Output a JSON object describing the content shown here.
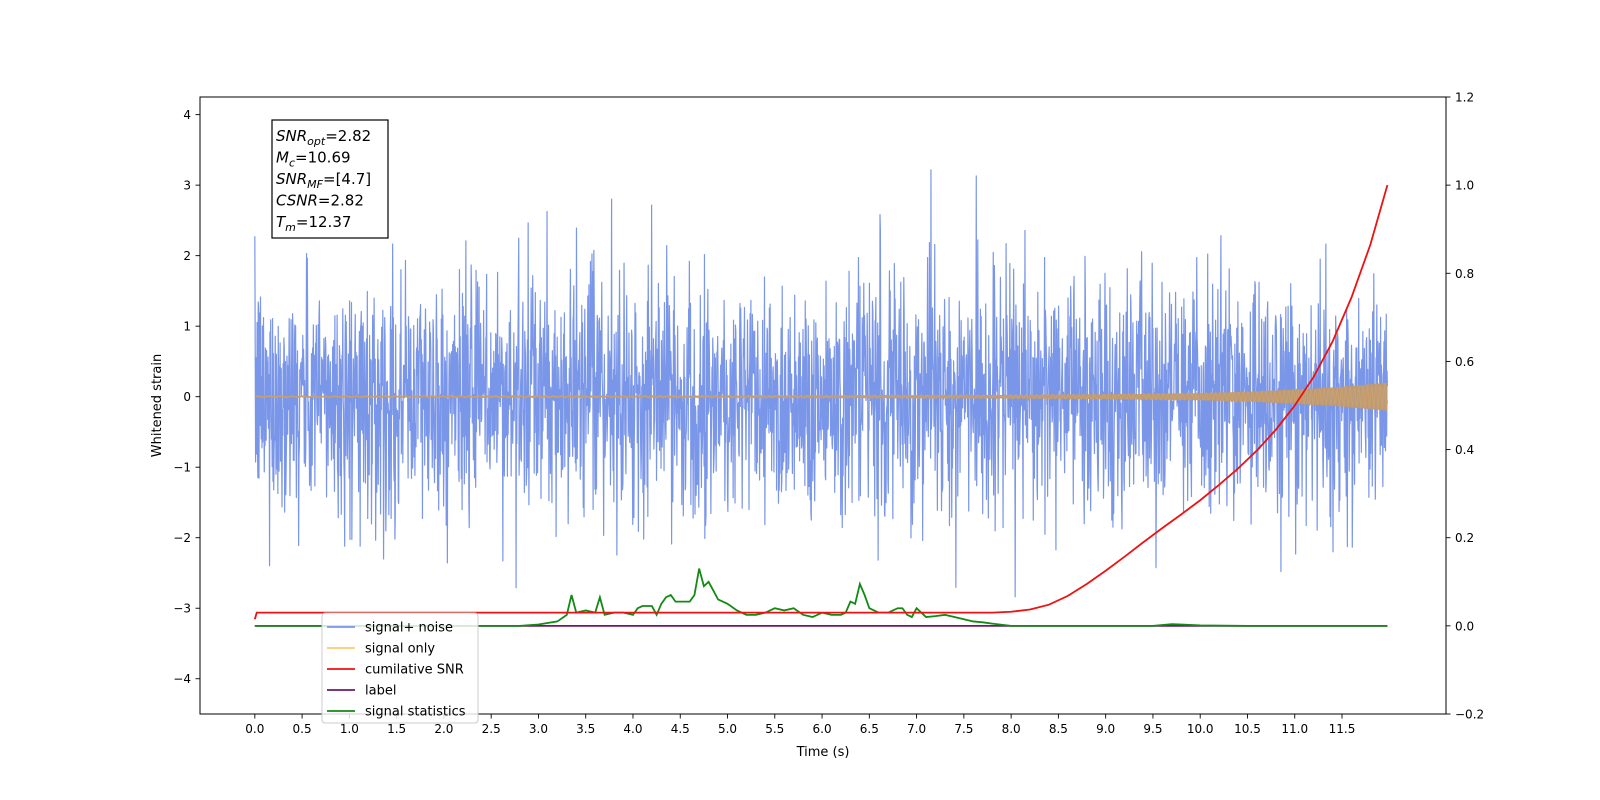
{
  "chart_data": {
    "type": "line",
    "title": "",
    "xlabel": "Time (s)",
    "ylabel_left": "Whitened strain",
    "ylabel_right": "",
    "xlim": [
      -0.58,
      12.6
    ],
    "ylim_left": [
      -4.5,
      4.25
    ],
    "ylim_right": [
      -0.2,
      1.2
    ],
    "x_ticks": [
      0.0,
      0.5,
      1.0,
      1.5,
      2.0,
      2.5,
      3.0,
      3.5,
      4.0,
      4.5,
      5.0,
      5.5,
      6.0,
      6.5,
      7.0,
      7.5,
      8.0,
      8.5,
      9.0,
      9.5,
      10.0,
      10.5,
      11.0,
      11.5
    ],
    "x_tick_labels": [
      "0.0",
      "0.5",
      "1.0",
      "1.5",
      "2.0",
      "2.5",
      "3.0",
      "3.5",
      "4.0",
      "4.5",
      "5.0",
      "5.5",
      "6.0",
      "6.5",
      "7.0",
      "7.5",
      "8.0",
      "8.5",
      "9.0",
      "9.5",
      "10.0",
      "10.5",
      "11.0",
      "11.5"
    ],
    "y_left_ticks": [
      4,
      3,
      2,
      1,
      0,
      -1,
      -2,
      -3,
      -4
    ],
    "y_left_tick_labels": [
      "4",
      "3",
      "2",
      "1",
      "0",
      "−1",
      "−2",
      "−3",
      "−4"
    ],
    "y_right_ticks": [
      1.2,
      1.0,
      0.8,
      0.6,
      0.4,
      0.2,
      0.0,
      -0.2
    ],
    "y_right_tick_labels": [
      "1.2",
      "1.0",
      "0.8",
      "0.6",
      "0.4",
      "0.2",
      "0.0",
      "−0.2"
    ],
    "grid": false,
    "legend_placement": "lower-left",
    "annotation": {
      "lines": [
        {
          "symbol": "SNR",
          "sub": "opt",
          "value": "=2.82"
        },
        {
          "symbol": "M",
          "sub": "c",
          "value": "=10.69"
        },
        {
          "symbol": "SNR",
          "sub": "MF",
          "value": "=[4.7]"
        },
        {
          "symbol": "CSNR",
          "sub": "",
          "value": "=2.82"
        },
        {
          "symbol": "T",
          "sub": "m",
          "value": "=12.37"
        }
      ]
    },
    "series": [
      {
        "name": "signal+ noise",
        "axis": "left",
        "color": "#7a96e8",
        "noise_amplitude": 1.55,
        "t_start": 0.0,
        "t_end": 11.98
      },
      {
        "name": "signal only",
        "axis": "left",
        "color": "#ffb347",
        "envelope_x": [
          0.0,
          5.0,
          8.0,
          9.0,
          10.0,
          10.5,
          11.0,
          11.5,
          11.98
        ],
        "envelope_y": [
          0.01,
          0.015,
          0.025,
          0.035,
          0.05,
          0.07,
          0.1,
          0.14,
          0.2
        ]
      },
      {
        "name": "cumilative SNR",
        "axis": "right",
        "color": "#ee1111",
        "x": [
          0.0,
          0.02,
          1.0,
          2.0,
          3.0,
          4.0,
          5.0,
          6.0,
          7.0,
          7.5,
          7.8,
          8.0,
          8.2,
          8.4,
          8.6,
          8.8,
          9.0,
          9.2,
          9.4,
          9.6,
          9.8,
          10.0,
          10.2,
          10.4,
          10.6,
          10.8,
          11.0,
          11.2,
          11.4,
          11.6,
          11.8,
          11.98
        ],
        "y": [
          0.015,
          0.03,
          0.03,
          0.03,
          0.03,
          0.03,
          0.03,
          0.03,
          0.03,
          0.03,
          0.03,
          0.032,
          0.037,
          0.048,
          0.068,
          0.095,
          0.125,
          0.157,
          0.19,
          0.222,
          0.253,
          0.285,
          0.32,
          0.357,
          0.398,
          0.445,
          0.5,
          0.565,
          0.645,
          0.745,
          0.865,
          1.0
        ]
      },
      {
        "name": "label",
        "axis": "right",
        "color": "#6a1a6a",
        "x": [
          0.0,
          11.98
        ],
        "y": [
          0.0,
          0.0
        ]
      },
      {
        "name": "signal statistics",
        "axis": "right",
        "color": "#138a13",
        "x": [
          0.0,
          2.8,
          3.0,
          3.2,
          3.3,
          3.35,
          3.4,
          3.5,
          3.6,
          3.65,
          3.7,
          3.8,
          3.9,
          4.0,
          4.05,
          4.1,
          4.2,
          4.25,
          4.3,
          4.35,
          4.4,
          4.45,
          4.5,
          4.6,
          4.65,
          4.7,
          4.75,
          4.8,
          4.85,
          4.9,
          5.0,
          5.1,
          5.2,
          5.3,
          5.4,
          5.5,
          5.6,
          5.7,
          5.8,
          5.9,
          6.0,
          6.1,
          6.2,
          6.25,
          6.3,
          6.35,
          6.4,
          6.45,
          6.5,
          6.6,
          6.7,
          6.8,
          6.85,
          6.9,
          6.95,
          7.0,
          7.1,
          7.2,
          7.3,
          7.4,
          7.5,
          7.6,
          7.7,
          7.8,
          8.0,
          9.5,
          9.7,
          9.8,
          10.0,
          10.5,
          11.98
        ],
        "y": [
          0.0,
          0.0,
          0.003,
          0.01,
          0.025,
          0.07,
          0.03,
          0.035,
          0.03,
          0.065,
          0.025,
          0.03,
          0.03,
          0.025,
          0.04,
          0.045,
          0.045,
          0.025,
          0.05,
          0.065,
          0.07,
          0.055,
          0.055,
          0.055,
          0.07,
          0.13,
          0.09,
          0.1,
          0.08,
          0.06,
          0.05,
          0.035,
          0.025,
          0.025,
          0.03,
          0.04,
          0.035,
          0.04,
          0.025,
          0.02,
          0.03,
          0.025,
          0.025,
          0.03,
          0.055,
          0.05,
          0.095,
          0.07,
          0.04,
          0.03,
          0.03,
          0.04,
          0.04,
          0.025,
          0.02,
          0.04,
          0.02,
          0.022,
          0.025,
          0.02,
          0.015,
          0.01,
          0.008,
          0.005,
          0.0,
          0.0,
          0.004,
          0.003,
          0.001,
          0.0,
          0.0
        ]
      }
    ],
    "legend": [
      {
        "label": "signal+ noise",
        "color": "#7a96e8"
      },
      {
        "label": "signal only",
        "color": "#ffc870"
      },
      {
        "label": "cumilative SNR",
        "color": "#ee1111"
      },
      {
        "label": "label",
        "color": "#6a1a6a"
      },
      {
        "label": "signal statistics",
        "color": "#138a13"
      }
    ]
  }
}
